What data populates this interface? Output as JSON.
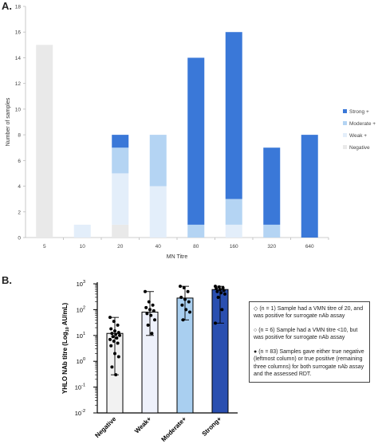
{
  "panels": {
    "a_label": "A.",
    "b_label": "B."
  },
  "chart_data": [
    {
      "type": "bar",
      "stacked": true,
      "categories": [
        "5",
        "10",
        "20",
        "40",
        "80",
        "160",
        "320",
        "640"
      ],
      "xlabel": "MN Titre",
      "ylabel": "Number of samples",
      "ylim": [
        0,
        18
      ],
      "yticks": [
        0,
        2,
        4,
        6,
        8,
        10,
        12,
        14,
        16,
        18
      ],
      "legend_position": "right",
      "series": [
        {
          "name": "Negative",
          "color": "#e9e9e9",
          "values": [
            15,
            0,
            1,
            0,
            0,
            0,
            0,
            0
          ]
        },
        {
          "name": "Weak +",
          "color": "#e3eefa",
          "values": [
            0,
            1,
            4,
            4,
            0,
            1,
            0,
            0
          ]
        },
        {
          "name": "Moderate +",
          "color": "#b4d4f3",
          "values": [
            0,
            0,
            2,
            4,
            1,
            2,
            1,
            0
          ]
        },
        {
          "name": "Strong +",
          "color": "#3a78d8",
          "values": [
            0,
            0,
            1,
            0,
            13,
            13,
            6,
            8
          ]
        }
      ],
      "legend_order": [
        "Strong +",
        "Moderate +",
        "Weak +",
        "Negative"
      ]
    },
    {
      "type": "bar",
      "scale": "log",
      "ylabel": "YHLO NAb titre (Log10 AU/mL)",
      "ylabel_main": "YHLO NAb titre (Log",
      "ylabel_sub": "10",
      "ylabel_tail": " AU/mL)",
      "ylim": [
        0.01,
        1000
      ],
      "yticks": [
        "10-2",
        "10-1",
        "100",
        "101",
        "102",
        "103"
      ],
      "categories": [
        "Negative",
        "Weak+",
        "Moderate+",
        "Strong+"
      ],
      "bar_means": [
        12,
        80,
        280,
        600
      ],
      "error_ranges": [
        [
          0.3,
          50
        ],
        [
          10,
          500
        ],
        [
          40,
          800
        ],
        [
          30,
          800
        ]
      ],
      "colors": [
        "#f2f2f2",
        "#eef1fb",
        "#a9cff0",
        "#2a4fb0"
      ],
      "points": [
        [
          50,
          35,
          25,
          18,
          15,
          13,
          12,
          11,
          10,
          9,
          8,
          7,
          6,
          5,
          4,
          2,
          1.5,
          0.6,
          0.3
        ],
        [
          500,
          200,
          150,
          120,
          100,
          90,
          70,
          60,
          40,
          25,
          12
        ],
        [
          800,
          700,
          500,
          300,
          250,
          200,
          150,
          100,
          80,
          40
        ],
        [
          800,
          750,
          700,
          650,
          600,
          550,
          500,
          450,
          400,
          300,
          100,
          30
        ]
      ]
    }
  ],
  "notes": [
    {
      "symbol": "◇",
      "text": "(n = 1) Sample had a VMN titre of 20, and was positive for surrogate nAb assay"
    },
    {
      "symbol": "○",
      "text": "(n = 6) Sample had a VMN titre <10, but was positive for surrogate nAb assay"
    },
    {
      "symbol": "●",
      "text": "(n = 83) Samples gave either true negative (leftmost column) or true positive (remaining three columns) for both surrogate nAb assay and the assessed RDT."
    }
  ]
}
